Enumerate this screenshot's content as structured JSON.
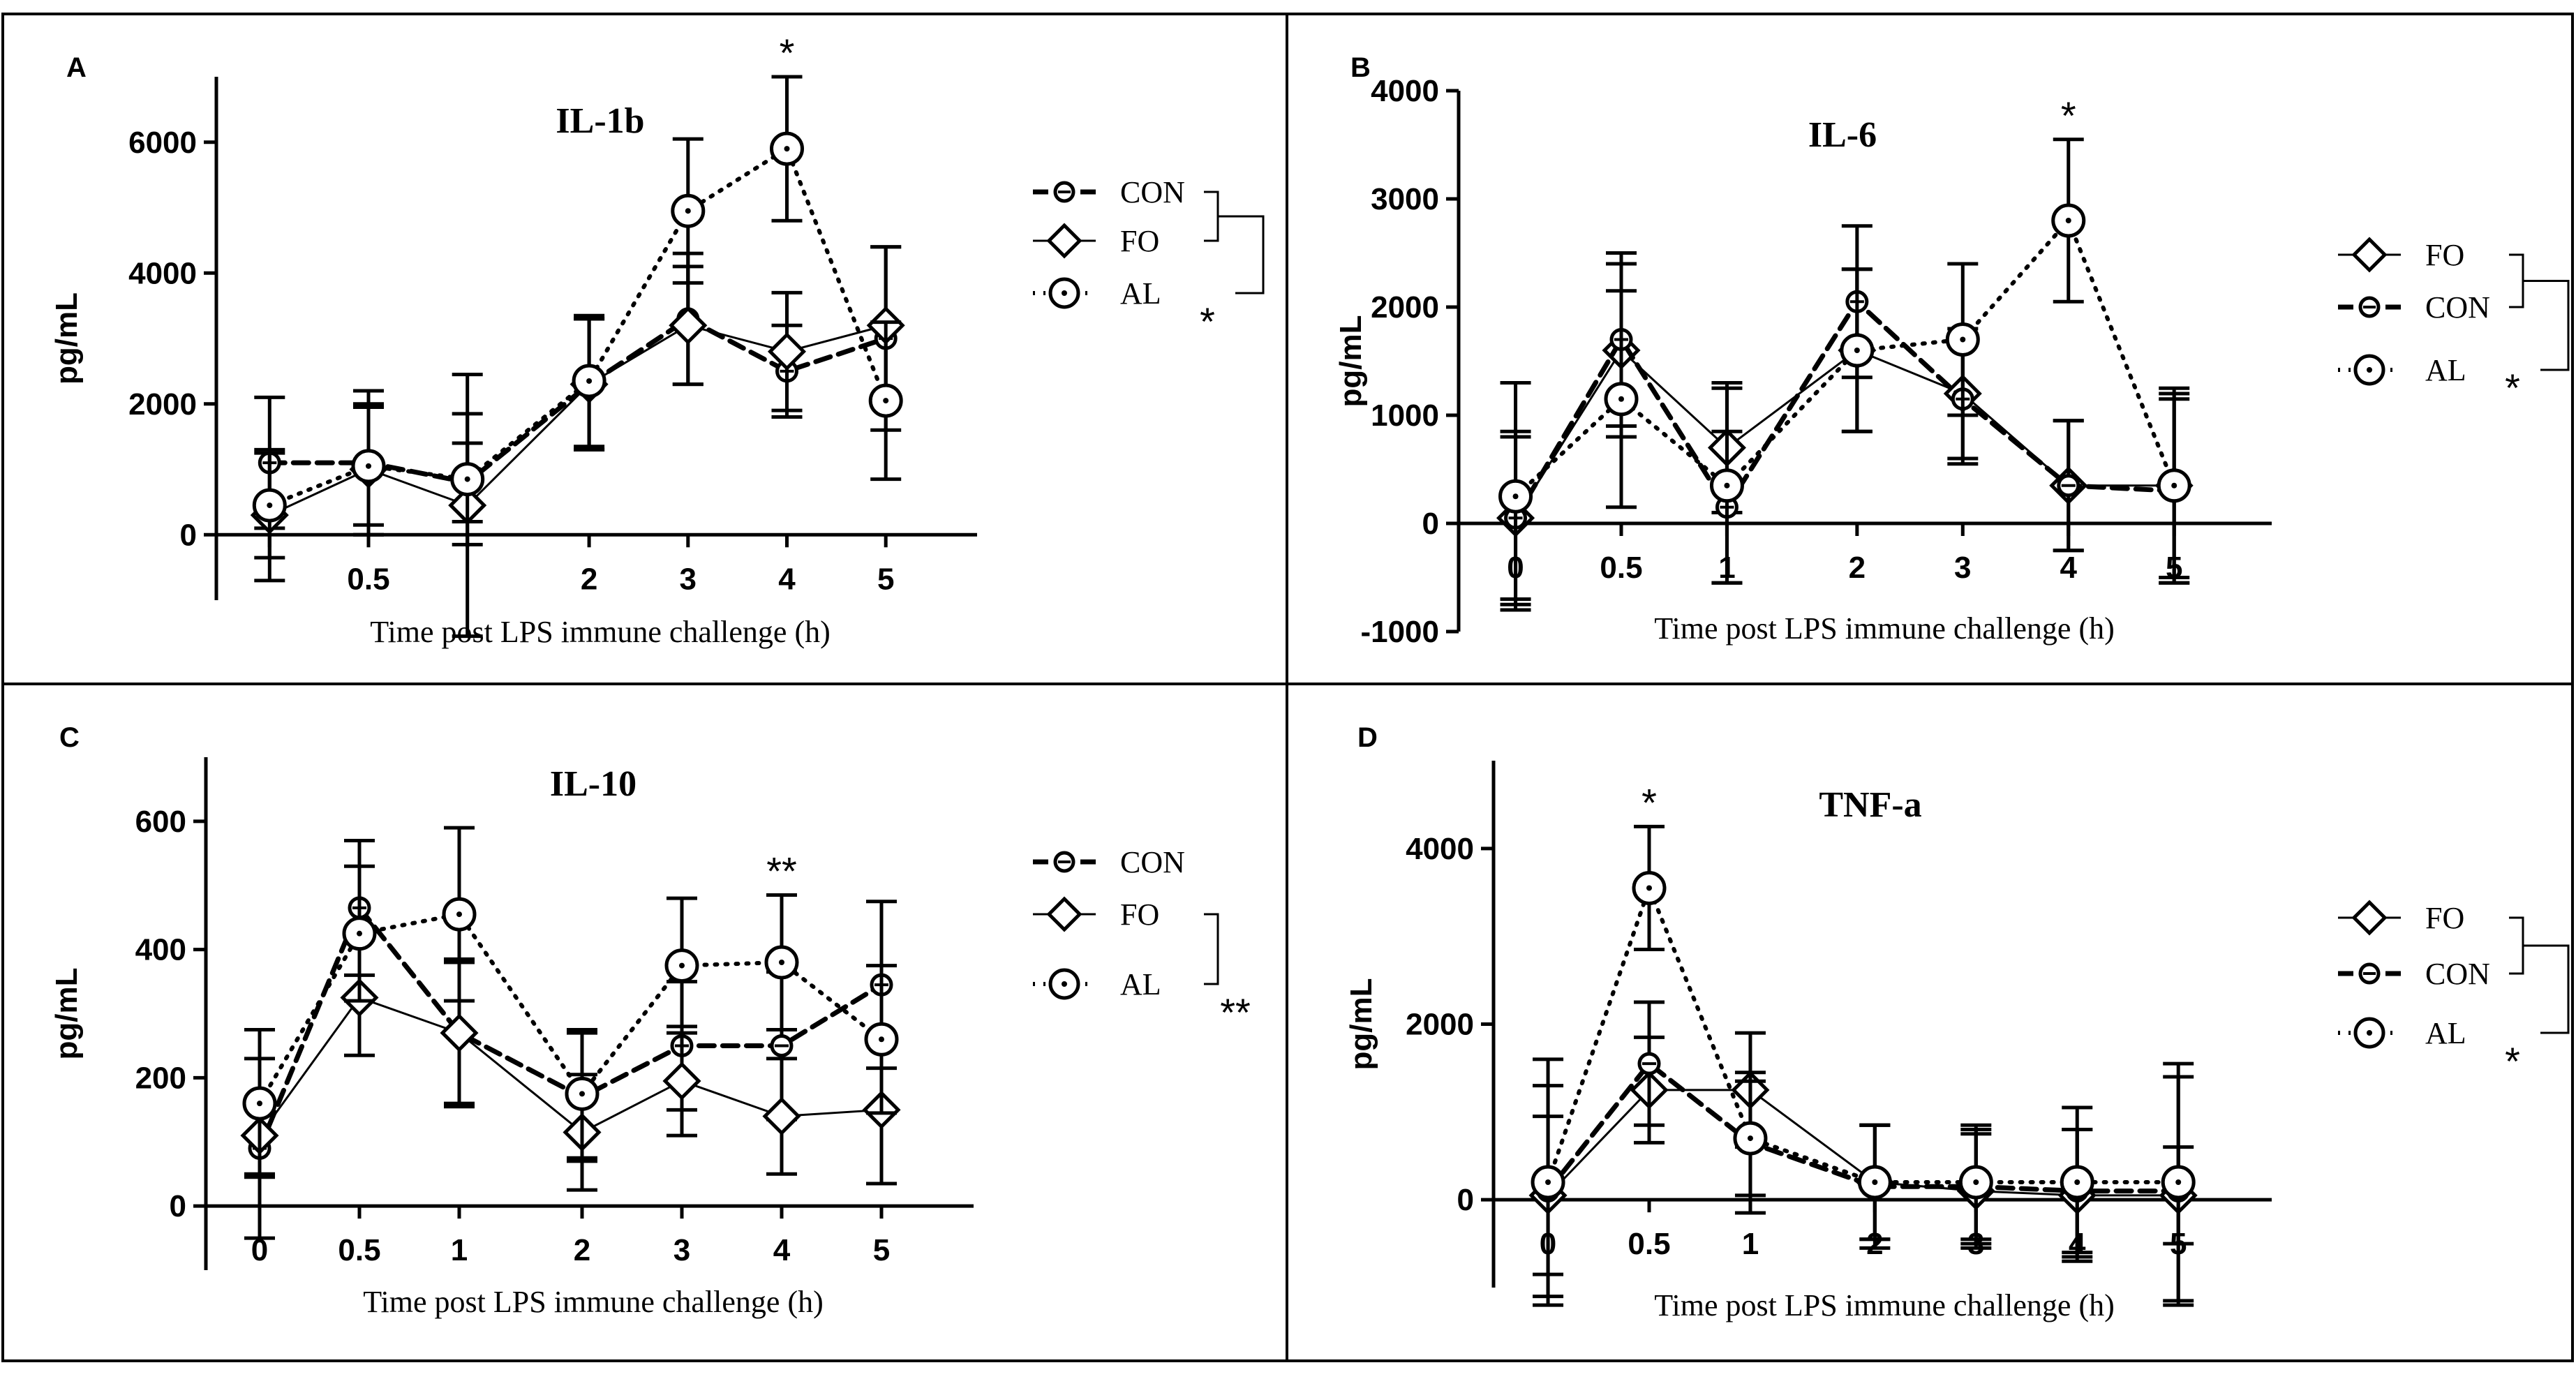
{
  "chart_data": [
    {
      "panel": "A",
      "type": "line",
      "title": "IL-1b",
      "ylabel": "pg/mL",
      "xlabel": "Time post LPS immune challenge (h)",
      "ylim": [
        -1000,
        7000
      ],
      "yticks": [
        0,
        2000,
        4000,
        6000
      ],
      "x": [
        0,
        0.5,
        1,
        2,
        3,
        4,
        5
      ],
      "x_tick_labels": [
        "",
        "0.5",
        "",
        "2",
        "3",
        "4",
        "5"
      ],
      "series": [
        {
          "name": "CON",
          "style": "dashed",
          "values": [
            1100,
            1100,
            800,
            2300,
            3300,
            2500,
            3000
          ],
          "err": [
            1000,
            1100,
            600,
            1000,
            1000,
            700,
            1400
          ]
        },
        {
          "name": "FO",
          "style": "solid",
          "values": [
            300,
            1000,
            450,
            2300,
            3200,
            2800,
            3200
          ],
          "err": [
            1000,
            1000,
            2000,
            1000,
            900,
            900,
            1200
          ]
        },
        {
          "name": "AL",
          "style": "dotted",
          "values": [
            450,
            1050,
            850,
            2350,
            4950,
            5900,
            2050
          ],
          "err": [
            800,
            900,
            1000,
            1000,
            1100,
            1100,
            1200
          ]
        }
      ],
      "annotations": [
        {
          "text": "*",
          "x": 4
        }
      ],
      "legend_stars": [
        "*"
      ]
    },
    {
      "panel": "B",
      "type": "line",
      "title": "IL-6",
      "ylabel": "pg/mL",
      "xlabel": "Time post LPS immune challenge (h)",
      "ylim": [
        -1000,
        4000
      ],
      "yticks": [
        -1000,
        0,
        1000,
        2000,
        3000,
        4000
      ],
      "x": [
        0,
        0.5,
        1,
        2,
        3,
        4,
        5
      ],
      "x_tick_labels": [
        "0",
        "0.5",
        "1",
        "2",
        "3",
        "4",
        "5"
      ],
      "series": [
        {
          "name": "FO",
          "style": "solid",
          "values": [
            50,
            1600,
            700,
            1600,
            1200,
            350,
            350
          ],
          "err": [
            750,
            800,
            600,
            750,
            600,
            600,
            900
          ]
        },
        {
          "name": "CON",
          "style": "dashed",
          "values": [
            50,
            1700,
            150,
            2050,
            1150,
            350,
            300
          ],
          "err": [
            800,
            800,
            700,
            700,
            600,
            600,
            850
          ]
        },
        {
          "name": "AL",
          "style": "dotted",
          "values": [
            250,
            1150,
            350,
            1600,
            1700,
            2800,
            350
          ],
          "err": [
            1050,
            1000,
            900,
            750,
            700,
            750,
            850
          ]
        }
      ],
      "annotations": [
        {
          "text": "*",
          "x": 4
        }
      ],
      "legend_stars": [
        "*"
      ]
    },
    {
      "panel": "C",
      "type": "line",
      "title": "IL-10",
      "ylabel": "pg/mL",
      "xlabel": "Time post LPS immune challenge (h)",
      "ylim": [
        -100,
        700
      ],
      "yticks": [
        0,
        200,
        400,
        600
      ],
      "x": [
        0,
        0.5,
        1,
        2,
        3,
        4,
        5
      ],
      "x_tick_labels": [
        "0",
        "0.5",
        "1",
        "2",
        "3",
        "4",
        "5"
      ],
      "series": [
        {
          "name": "CON",
          "style": "dashed",
          "values": [
            90,
            465,
            270,
            170,
            250,
            250,
            345
          ],
          "err": [
            140,
            105,
            115,
            100,
            100,
            115,
            130
          ]
        },
        {
          "name": "FO",
          "style": "solid",
          "values": [
            110,
            325,
            270,
            115,
            195,
            140,
            150
          ],
          "err": [
            60,
            90,
            110,
            90,
            85,
            90,
            115
          ]
        },
        {
          "name": "AL",
          "style": "dotted",
          "values": [
            160,
            425,
            455,
            175,
            375,
            380,
            260
          ],
          "err": [
            115,
            105,
            135,
            100,
            105,
            105,
            115
          ]
        }
      ],
      "annotations": [
        {
          "text": "**",
          "x": 4
        }
      ],
      "legend_stars": [
        "**"
      ]
    },
    {
      "panel": "D",
      "type": "line",
      "title": "TNF-a",
      "ylabel": "pg/mL",
      "xlabel": "Time post LPS immune challenge (h)",
      "ylim": [
        -1000,
        5000
      ],
      "yticks": [
        0,
        2000,
        4000
      ],
      "x": [
        0,
        0.5,
        1,
        2,
        3,
        4,
        5
      ],
      "x_tick_labels": [
        "0",
        "0.5",
        "1",
        "2",
        "3",
        "4",
        "5"
      ],
      "series": [
        {
          "name": "FO",
          "style": "solid",
          "values": [
            50,
            1250,
            1250,
            200,
            100,
            50,
            50
          ],
          "err": [
            900,
            600,
            650,
            650,
            650,
            750,
            550
          ]
        },
        {
          "name": "CON",
          "style": "dashed",
          "values": [
            100,
            1550,
            650,
            150,
            150,
            100,
            100
          ],
          "err": [
            1200,
            700,
            800,
            700,
            650,
            700,
            1300
          ]
        },
        {
          "name": "AL",
          "style": "dotted",
          "values": [
            200,
            3550,
            700,
            200,
            200,
            200,
            200
          ],
          "err": [
            1400,
            700,
            650,
            650,
            650,
            850,
            1350
          ]
        }
      ],
      "annotations": [
        {
          "text": "*",
          "x": 0.5
        }
      ],
      "legend_stars": [
        "*"
      ]
    }
  ]
}
